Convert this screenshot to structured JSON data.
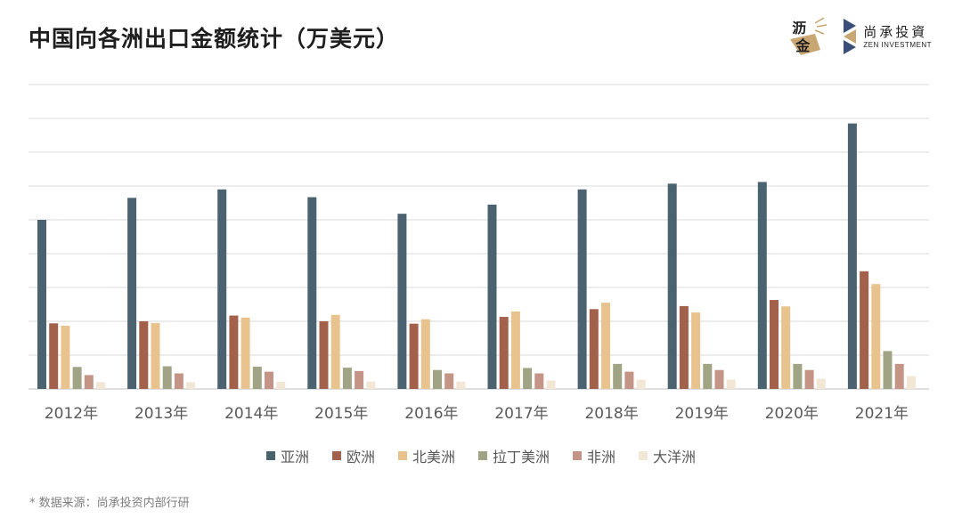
{
  "title": "中国向各洲出口金额统计（万美元）",
  "logos": {
    "lijin": [
      "沥",
      "金"
    ],
    "zen_cn": "尚承投資",
    "zen_en": "ZEN INVESTMENT"
  },
  "source": "* 数据来源：尚承投资内部行研",
  "chart_data": {
    "type": "bar",
    "categories": [
      "2012年",
      "2013年",
      "2014年",
      "2015年",
      "2016年",
      "2017年",
      "2018年",
      "2019年",
      "2020年",
      "2021年"
    ],
    "ylim": [
      0,
      900
    ],
    "grid": true,
    "legend_position": "bottom",
    "series": [
      {
        "name": "亚洲",
        "color": "#4b6370",
        "values": [
          500,
          565,
          590,
          567,
          518,
          545,
          590,
          607,
          612,
          785
        ]
      },
      {
        "name": "欧洲",
        "color": "#a3614c",
        "values": [
          194,
          200,
          217,
          200,
          193,
          213,
          236,
          245,
          263,
          348
        ]
      },
      {
        "name": "北美洲",
        "color": "#e8c38e",
        "values": [
          187,
          195,
          211,
          219,
          206,
          229,
          255,
          226,
          244,
          310
        ]
      },
      {
        "name": "拉丁美洲",
        "color": "#a1a484",
        "values": [
          65,
          67,
          66,
          63,
          56,
          62,
          74,
          74,
          74,
          112
        ]
      },
      {
        "name": "非洲",
        "color": "#c49486",
        "values": [
          41,
          46,
          51,
          53,
          46,
          46,
          51,
          56,
          56,
          74
        ]
      },
      {
        "name": "大洋洲",
        "color": "#f2e6d4",
        "values": [
          20,
          20,
          21,
          22,
          22,
          25,
          27,
          27,
          30,
          38
        ]
      }
    ]
  }
}
